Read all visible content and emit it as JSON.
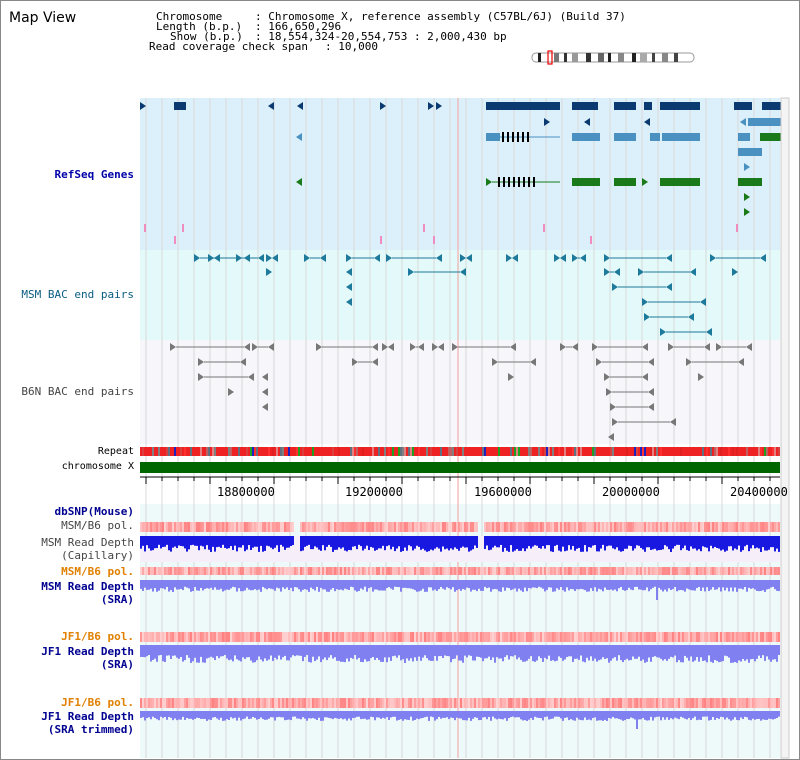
{
  "view": {
    "title": "Map View",
    "chromosome_label": "Chromosome",
    "chromosome_value": ": Chromosome X, reference assembly (C57BL/6J) (Build 37)",
    "length_label": "Length (b.p.)",
    "length_value": ": 166,650,296",
    "show_label": "Show (b.p.)",
    "show_value": ": 18,554,324-20,554,753 : 2,000,430 bp",
    "coverage_label": "Read coverage check span",
    "coverage_value": ": 10,000"
  },
  "tracks": {
    "refseq": "RefSeq Genes",
    "msm_bac": "MSM BAC end pairs",
    "b6n_bac": "B6N BAC end pairs",
    "repeat": "Repeat",
    "chromosome": "chromosome X",
    "dbsnp": "dbSNP(Mouse)",
    "msm_b6_pol_1": "MSM/B6 pol.",
    "msm_depth_cap_1": "MSM Read Depth",
    "msm_depth_cap_2": "(Capillary)",
    "msm_b6_pol_2": "MSM/B6 pol.",
    "msm_depth_sra_1": "MSM Read Depth",
    "msm_depth_sra_2": "(SRA)",
    "jf1_pol_1": "JF1/B6 pol.",
    "jf1_depth_sra_1": "JF1 Read Depth",
    "jf1_depth_sra_2": "(SRA)",
    "jf1_pol_2": "JF1/B6 pol.",
    "jf1_depth_trim_1": "JF1 Read Depth",
    "jf1_depth_trim_2": "(SRA trimmed)"
  },
  "axis": {
    "ticks": [
      "18800000",
      "19200000",
      "19600000",
      "20000000",
      "20400000"
    ],
    "range": [
      18554324,
      20554753
    ]
  },
  "colors": {
    "refseq_bg": "#dbf0fa",
    "msm_bg": "#e4fafa",
    "b6n_bg": "#f6f6fb",
    "chrom_green": "#006600",
    "gene_dark": "#0a3a70",
    "gene_mid": "#4a90c0",
    "gene_green": "#1a7a1a",
    "depth_blue": "#1818e0",
    "depth_lavender": "#8080f0"
  }
}
